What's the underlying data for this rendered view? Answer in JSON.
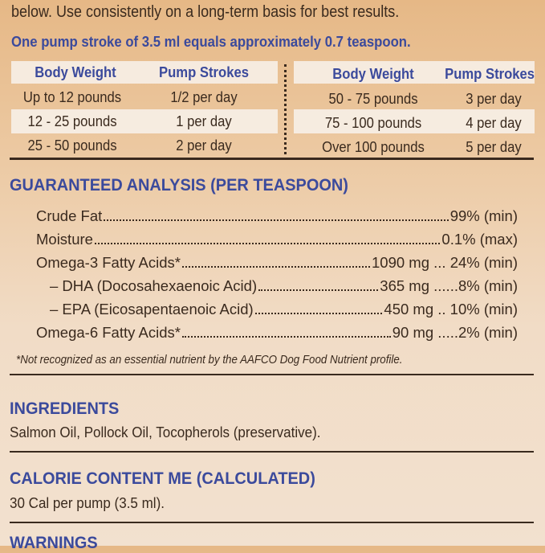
{
  "directions": {
    "intro_line": "below. Use consistently on a long-term basis for best results.",
    "pump_note": "One pump stroke of 3.5 ml equals approximately 0.7 teaspoon."
  },
  "dosage_table": {
    "left": {
      "headers": [
        "Body Weight",
        "Pump Strokes"
      ],
      "rows": [
        [
          "Up to 12 pounds",
          "1/2 per day"
        ],
        [
          "12 - 25 pounds",
          "1 per day"
        ],
        [
          "25 - 50 pounds",
          "2 per day"
        ]
      ]
    },
    "right": {
      "headers": [
        "Body Weight",
        "Pump Strokes"
      ],
      "rows": [
        [
          "50 - 75 pounds",
          "3 per day"
        ],
        [
          "75 - 100 pounds",
          "4 per day"
        ],
        [
          "Over 100 pounds",
          "5 per day"
        ]
      ]
    }
  },
  "analysis": {
    "title": "GUARANTEED ANALYSIS (PER TEASPOON)",
    "rows": [
      {
        "label": "Crude Fat",
        "value": "99% (min)"
      },
      {
        "label": "Moisture",
        "value": "0.1% (max)"
      },
      {
        "label": "Omega-3 Fatty Acids*",
        "value": "1090 mg ... 24% (min)"
      },
      {
        "label": "– DHA (Docosahexaenoic Acid)",
        "value": "365 mg ......8% (min)"
      },
      {
        "label": "– EPA (Eicosapentaenoic Acid)",
        "value": "450 mg .. 10% (min)"
      },
      {
        "label": "Omega-6 Fatty Acids*",
        "value": "90 mg .....2% (min)"
      }
    ],
    "footnote": "*Not recognized as an essential nutrient by the AAFCO Dog Food Nutrient profile."
  },
  "ingredients": {
    "title": "INGREDIENTS",
    "text": "Salmon Oil, Pollock Oil, Tocopherols (preservative)."
  },
  "calories": {
    "title": "CALORIE CONTENT ME (CALCULATED)",
    "text": "30 Cal per pump (3.5 ml)."
  },
  "warnings": {
    "title": "WARNINGS"
  },
  "colors": {
    "heading_blue": "#3b4a9c",
    "text_brown": "#3a2a1e",
    "background": "#f1dcc6"
  }
}
